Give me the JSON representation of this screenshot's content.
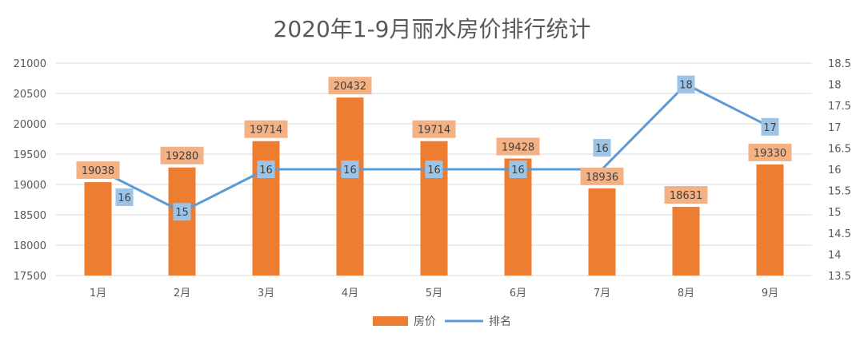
{
  "chart_data": {
    "type": "bar",
    "title": "2020年1-9月丽水房价排行统计",
    "categories": [
      "1月",
      "2月",
      "3月",
      "4月",
      "5月",
      "6月",
      "7月",
      "8月",
      "9月"
    ],
    "series": [
      {
        "name": "房价",
        "type": "bar",
        "axis": "left",
        "values": [
          19038,
          19280,
          19714,
          20432,
          19714,
          19428,
          18936,
          18631,
          19330
        ]
      },
      {
        "name": "排名",
        "type": "line",
        "axis": "right",
        "values": [
          16,
          15,
          16,
          16,
          16,
          16,
          16,
          18,
          17
        ]
      }
    ],
    "ylim_left": [
      17500,
      21000
    ],
    "yticks_left": [
      17500,
      18000,
      18500,
      19000,
      19500,
      20000,
      20500,
      21000
    ],
    "ylim_right": [
      13.5,
      18.5
    ],
    "yticks_right": [
      "13.5",
      "14",
      "14.5",
      "15",
      "15.5",
      "16",
      "16.5",
      "17",
      "17.5",
      "18",
      "18.5"
    ],
    "grid": true,
    "legend_position": "bottom",
    "colors": {
      "bar": "#ED7D31",
      "bar_label_bg": "#F4B183",
      "line": "#5B9BD5",
      "line_label_bg": "#9DC3E6",
      "grid": "#D9D9D9"
    }
  }
}
